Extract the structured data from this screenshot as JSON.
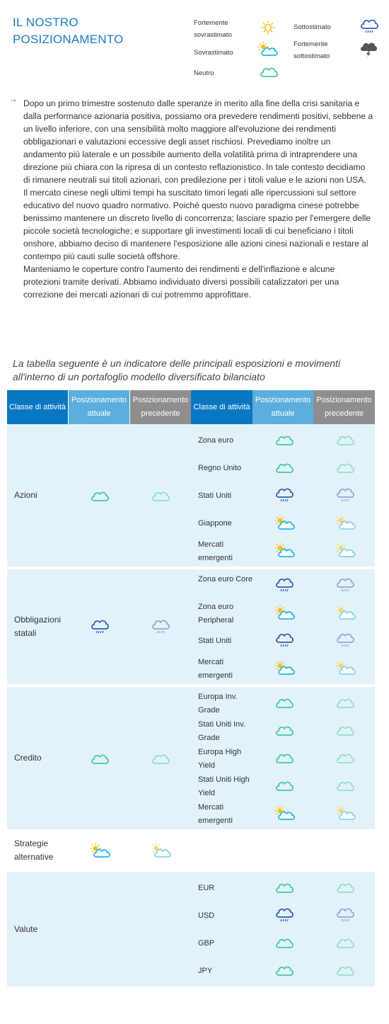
{
  "header": {
    "title_line1": "IL NOSTRO",
    "title_line2": "POSIZIONAMENTO"
  },
  "legend": [
    {
      "label": "Fortemente sovrastimato",
      "icon": "sun-icon"
    },
    {
      "label": "Sovrastimato",
      "icon": "sun-cloud-icon"
    },
    {
      "label": "Neutro",
      "icon": "cloud-icon"
    },
    {
      "label": "Sottostimato",
      "icon": "rain-cloud-icon"
    },
    {
      "label": "Fortemente sottostimato",
      "icon": "storm-cloud-icon"
    }
  ],
  "legend_labels": {
    "strong_over_1": "Fortemente",
    "strong_over_2": "sovrastimato",
    "over": "Sovrastimato",
    "neutral": "Neutro",
    "under": "Sottostimato",
    "strong_under_1": "Fortemente",
    "strong_under_2": "sottostimato"
  },
  "commentary": {
    "p1": "Dopo un primo trimestre sostenuto dalle speranze in merito alla fine della crisi sanitaria e dalla performance azionaria positiva, possiamo ora prevedere rendimenti positivi, sebbene a un livello inferiore, con una sensibilità molto maggiore all'evoluzione dei rendimenti obbligazionari e valutazioni eccessive degli asset rischiosi. Prevediamo inoltre un andamento più laterale e un possibile aumento della volatilità prima di intraprendere una direzione più chiara con la ripresa di un contesto reflazionistico. In tale contesto decidiamo di rimanere neutrali sui titoli azionari, con predilezione per i titoli value e le azioni non USA.",
    "p2": "Il mercato cinese negli ultimi tempi ha suscitato timori legati alle ripercussioni sul settore educativo del nuovo quadro normativo. Poiché questo nuovo paradigma cinese potrebbe benissimo mantenere un discreto livello di concorrenza; lasciare spazio per l'emergere delle piccole società tecnologiche; e supportare gli investimenti locali di cui beneficiano i titoli onshore, abbiamo deciso di mantenere l'esposizione alle azioni cinesi nazionali e restare al contempo più cauti sulle società offshore.",
    "p3": "Manteniamo le coperture contro l'aumento dei rendimenti e dell'inflazione e alcune protezioni tramite derivati. Abbiamo individuato diversi possibili catalizzatori per una correzione dei mercati azionari di cui potremmo approfittare."
  },
  "table_intro": "La tabella seguente è un indicatore delle principali esposizioni e movimenti all'interno di un portafoglio modello diversificato bilanciato",
  "table": {
    "headers": {
      "asset_class": "Classe di attività",
      "current": "Posizionamento attuale",
      "previous": "Posizionamento precedente",
      "asset_class_2": "Classe di attività",
      "current_2": "Posizionamento attuale",
      "previous_2": "Posizionamento precedente"
    },
    "colors": {
      "header_dark": "#0a77c2",
      "header_light": "#5baede",
      "header_grey": "#8e8e8e",
      "band": "#e3f2f9"
    },
    "groups": [
      {
        "name": "Azioni",
        "current": "cloud",
        "previous": "cloud",
        "rows": [
          {
            "label": "Zona euro",
            "current": "cloud",
            "previous": "cloud"
          },
          {
            "label": "Regno Unito",
            "current": "cloud",
            "previous": "cloud"
          },
          {
            "label": "Stati Uniti",
            "current": "rain",
            "previous": "rain"
          },
          {
            "label": "Giappone",
            "current": "sun-cloud",
            "previous": "sun-cloud"
          },
          {
            "label": "Mercati emergenti",
            "current": "sun-cloud",
            "previous": "sun-cloud"
          }
        ]
      },
      {
        "name": "Obbligazioni statali",
        "current": "rain",
        "previous": "rain",
        "rows": [
          {
            "label": "Zona euro Core",
            "current": "rain",
            "previous": "rain"
          },
          {
            "label": "Zona euro Peripheral",
            "current": "sun-cloud",
            "previous": "sun-cloud"
          },
          {
            "label": "Stati Uniti",
            "current": "rain",
            "previous": "rain"
          },
          {
            "label": "Mercati emergenti",
            "current": "sun-cloud",
            "previous": "sun-cloud"
          }
        ]
      },
      {
        "name": "Credito",
        "current": "cloud",
        "previous": "cloud",
        "rows": [
          {
            "label": "Europa Inv. Grade",
            "current": "cloud",
            "previous": "cloud"
          },
          {
            "label": "Stati Uniti Inv. Grade",
            "current": "cloud",
            "previous": "cloud"
          },
          {
            "label": "Europa High Yield",
            "current": "cloud",
            "previous": "cloud"
          },
          {
            "label": "Stati Uniti High Yield",
            "current": "cloud",
            "previous": "cloud"
          },
          {
            "label": "Mercati emergenti",
            "current": "sun-cloud",
            "previous": "sun-cloud"
          }
        ]
      },
      {
        "name": "Strategie alternative",
        "current": "sun-cloud",
        "previous": "sun-cloud",
        "rows": []
      },
      {
        "name": "Valute",
        "current": "",
        "previous": "",
        "rows": [
          {
            "label": "EUR",
            "current": "cloud",
            "previous": "cloud"
          },
          {
            "label": "USD",
            "current": "rain",
            "previous": "rain"
          },
          {
            "label": "GBP",
            "current": "cloud",
            "previous": "cloud"
          },
          {
            "label": "JPY",
            "current": "cloud",
            "previous": "cloud"
          }
        ]
      }
    ]
  }
}
